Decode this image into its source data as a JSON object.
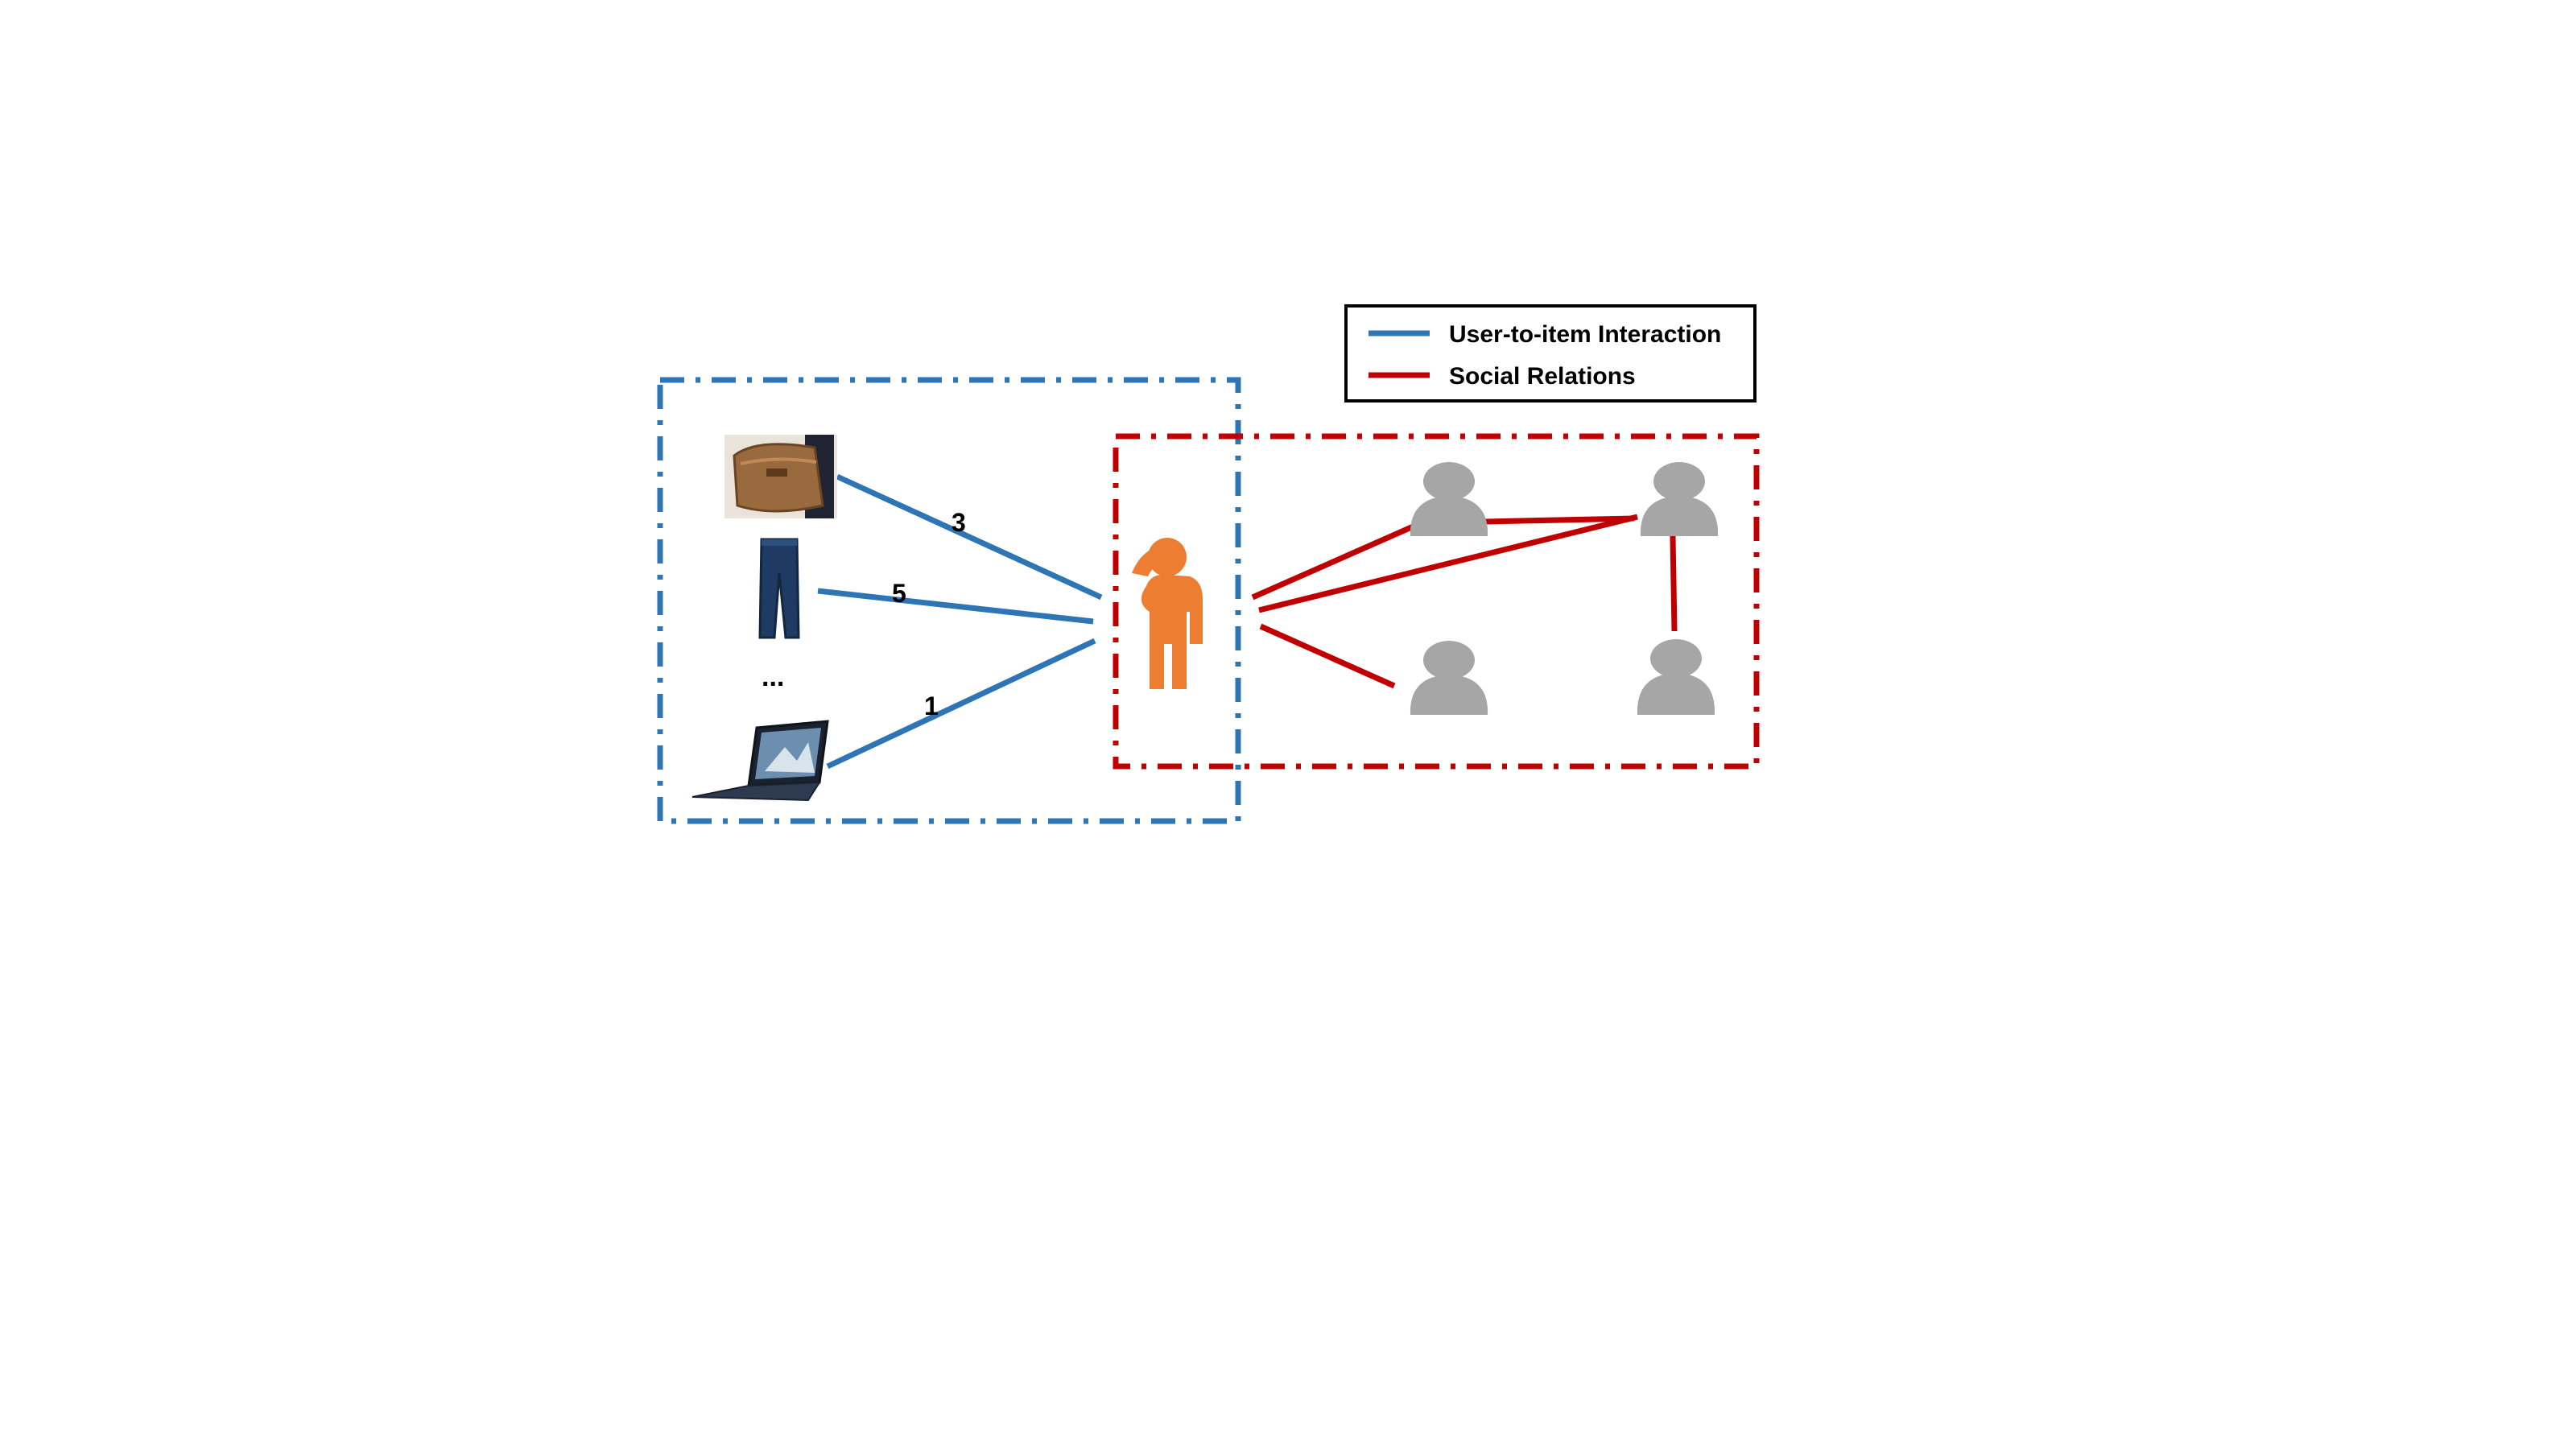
{
  "legend": {
    "items": [
      {
        "label": "User-to-item Interaction",
        "color": "#2e75b6"
      },
      {
        "label": "Social Relations",
        "color": "#c00000"
      }
    ]
  },
  "items_panel": {
    "border_color": "#2e75b6",
    "items": [
      {
        "name": "bag",
        "rating": "3"
      },
      {
        "name": "jeans",
        "rating": "5"
      },
      {
        "name": "laptop",
        "rating": "1"
      }
    ],
    "ellipsis": "..."
  },
  "social_panel": {
    "border_color": "#c00000"
  },
  "center_user": {
    "color": "#ed7d31"
  },
  "friends": {
    "color": "#a6a6a6"
  }
}
